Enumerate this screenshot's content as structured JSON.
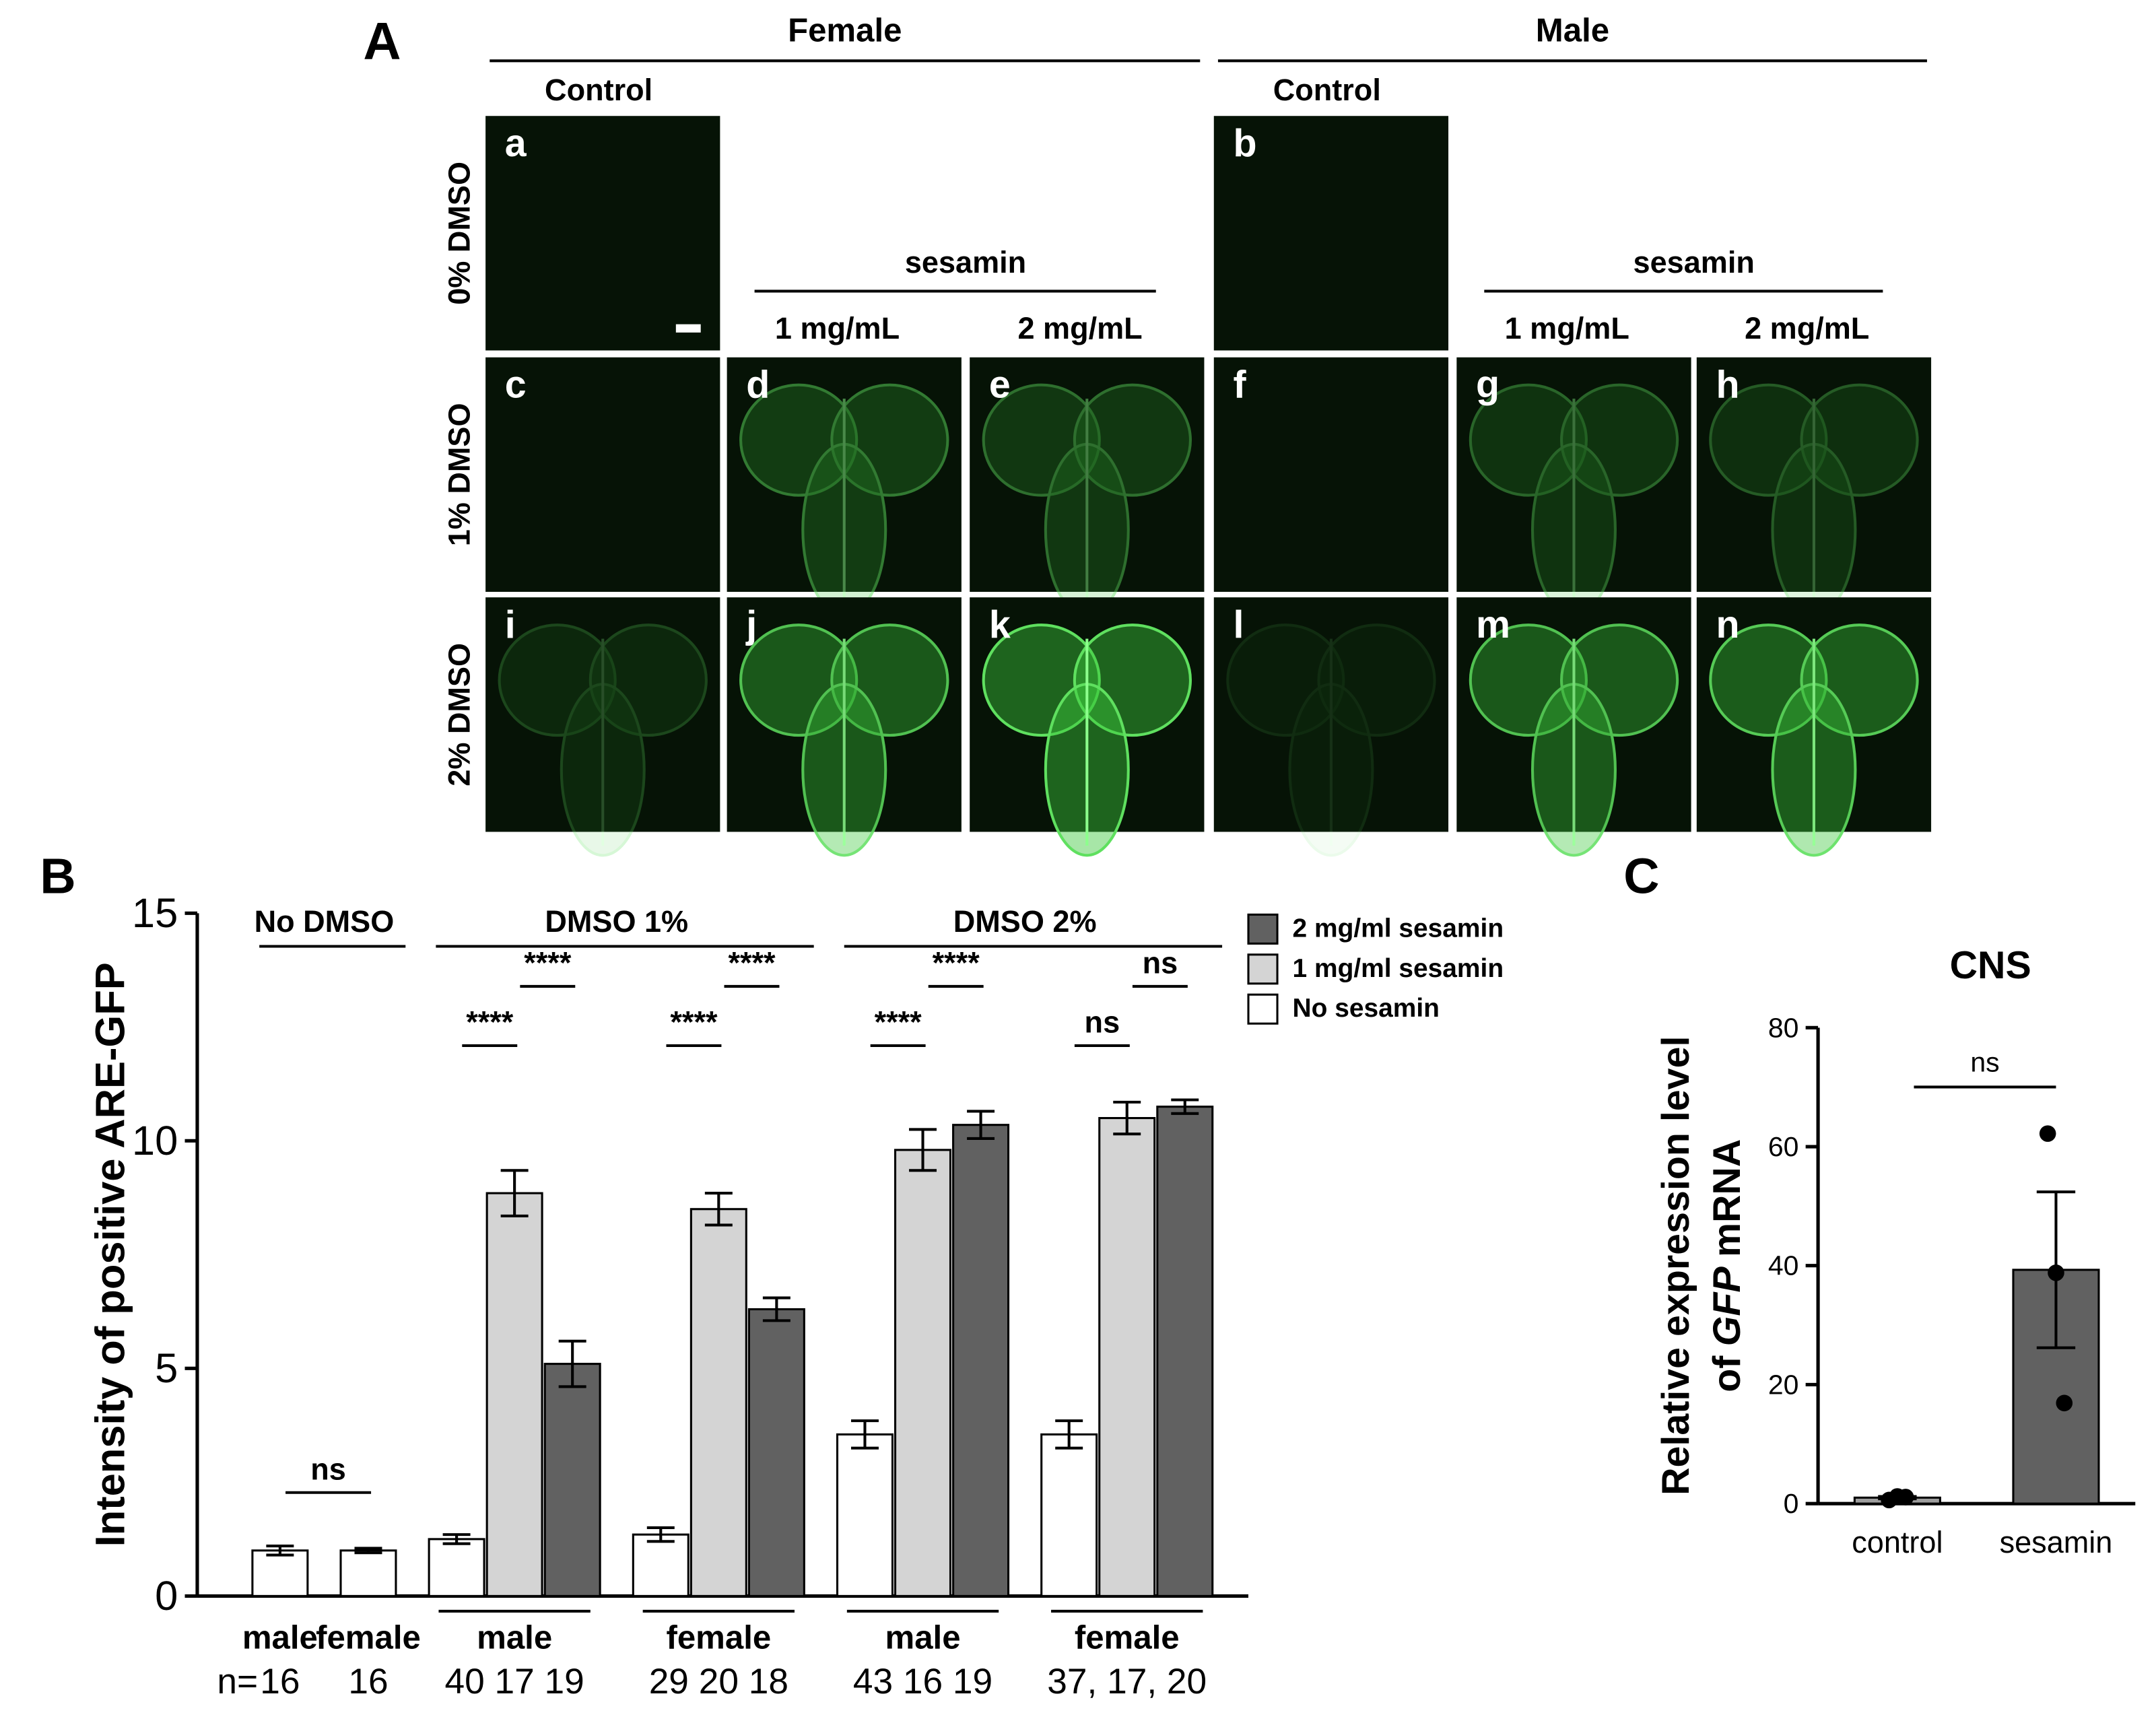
{
  "panel_a": {
    "label": "A",
    "row_labels": [
      "0% DMSO",
      "1% DMSO",
      "2% DMSO"
    ],
    "groups": [
      {
        "title": "Female",
        "control": "Control",
        "treatment": "sesamin",
        "doses": [
          "1 mg/mL",
          "2 mg/mL"
        ],
        "tiles": [
          [
            "a"
          ],
          [
            "c",
            "d",
            "e"
          ],
          [
            "i",
            "j",
            "k"
          ]
        ]
      },
      {
        "title": "Male",
        "control": "Control",
        "treatment": "sesamin",
        "doses": [
          "1 mg/mL",
          "2 mg/mL"
        ],
        "tiles": [
          [
            "b"
          ],
          [
            "f",
            "g",
            "h"
          ],
          [
            "l",
            "m",
            "n"
          ]
        ]
      }
    ]
  },
  "chart_data": [
    {
      "type": "bar",
      "panel_label": "B",
      "ylabel": "Intensity of positive ARE-GFP",
      "ylim": [
        0,
        15
      ],
      "yticks": [
        0,
        5,
        10,
        15
      ],
      "categories": [
        "male",
        "female",
        "male",
        "female",
        "male",
        "female"
      ],
      "group_labels": [
        "No DMSO",
        "DMSO 1%",
        "DMSO 2%"
      ],
      "category_group": [
        0,
        0,
        1,
        1,
        2,
        2
      ],
      "series": [
        {
          "name": "No sesamin",
          "color": "#ffffff",
          "values": [
            1.0,
            1.0,
            1.25,
            1.35,
            3.55,
            3.55
          ],
          "errors": [
            0.1,
            0.05,
            0.1,
            0.15,
            0.3,
            0.3
          ]
        },
        {
          "name": "1 mg/ml sesamin",
          "color": "#d4d4d4",
          "values": [
            null,
            null,
            8.85,
            8.5,
            9.8,
            10.5
          ],
          "errors": [
            null,
            null,
            0.5,
            0.35,
            0.45,
            0.35
          ]
        },
        {
          "name": "2 mg/ml sesamin",
          "color": "#616161",
          "values": [
            null,
            null,
            5.1,
            6.3,
            10.35,
            10.75
          ],
          "errors": [
            null,
            null,
            0.5,
            0.25,
            0.3,
            0.15
          ]
        }
      ],
      "n_prefix": "n=",
      "n_labels": [
        "16",
        "16",
        "40 17 19",
        "29 20 18",
        "43 16 19",
        "37, 17, 20"
      ],
      "legend": "right",
      "comparisons": [
        {
          "label": "ns",
          "from": {
            "series": 0,
            "category": 0
          },
          "to": {
            "series": 0,
            "category": 1
          }
        },
        {
          "label": "****",
          "from": {
            "series": 0,
            "category": 2
          },
          "to": {
            "series": 1,
            "category": 2
          }
        },
        {
          "label": "****",
          "from": {
            "series": 1,
            "category": 2
          },
          "to": {
            "series": 2,
            "category": 2
          }
        },
        {
          "label": "****",
          "from": {
            "series": 0,
            "category": 3
          },
          "to": {
            "series": 1,
            "category": 3
          }
        },
        {
          "label": "****",
          "from": {
            "series": 1,
            "category": 3
          },
          "to": {
            "series": 2,
            "category": 3
          }
        },
        {
          "label": "****",
          "from": {
            "series": 0,
            "category": 4
          },
          "to": {
            "series": 1,
            "category": 4
          }
        },
        {
          "label": "****",
          "from": {
            "series": 1,
            "category": 4
          },
          "to": {
            "series": 2,
            "category": 4
          }
        },
        {
          "label": "ns",
          "from": {
            "series": 0,
            "category": 5
          },
          "to": {
            "series": 1,
            "category": 5
          }
        },
        {
          "label": "ns",
          "from": {
            "series": 1,
            "category": 5
          },
          "to": {
            "series": 2,
            "category": 5
          }
        }
      ]
    },
    {
      "type": "bar",
      "panel_label": "C",
      "title": "CNS",
      "ylabel": [
        "Relative expression level",
        "of",
        "GFP",
        "mRNA"
      ],
      "ylim": [
        0,
        80
      ],
      "yticks": [
        0,
        20,
        40,
        60,
        80
      ],
      "categories": [
        "control",
        "sesamin"
      ],
      "values": [
        1.0,
        39.3
      ],
      "errors": [
        0.2,
        13.1
      ],
      "points": [
        [
          0.6,
          1.2,
          1.1
        ],
        [
          62.2,
          38.8,
          16.9
        ]
      ],
      "colors": [
        "#9e9e9e",
        "#616161"
      ],
      "comparisons": [
        {
          "label": "ns",
          "from": 0,
          "to": 1
        }
      ]
    }
  ]
}
